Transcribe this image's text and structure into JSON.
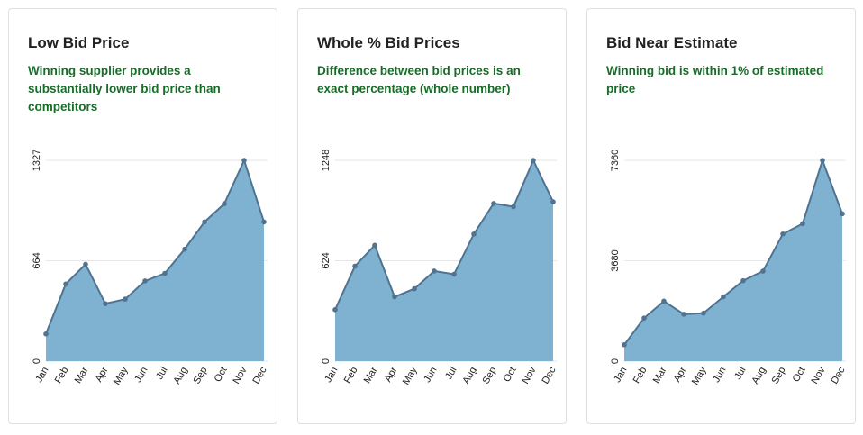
{
  "cards": [
    {
      "title": "Low Bid Price",
      "description": "Winning supplier provides a substantially lower bid price than competitors"
    },
    {
      "title": "Whole % Bid Prices",
      "description": "Difference between bid prices is an exact percentage (whole number)"
    },
    {
      "title": "Bid Near Estimate",
      "description": "Winning bid is within 1% of estimated price"
    }
  ],
  "colors": {
    "fill": "#7fb1d0",
    "line": "#4f7390",
    "point": "#4f7390",
    "description": "#1a6b2a"
  },
  "chart_data": [
    {
      "type": "area",
      "categories": [
        "Jan",
        "Feb",
        "Mar",
        "Apr",
        "May",
        "Jun",
        "Jul",
        "Aug",
        "Sep",
        "Oct",
        "Nov",
        "Dec"
      ],
      "series": [
        {
          "values": [
            180,
            510,
            640,
            380,
            410,
            530,
            580,
            740,
            920,
            1040,
            1327,
            920
          ]
        }
      ],
      "yticks": [
        "0",
        "664",
        "1327"
      ],
      "ylim": [
        0,
        1327
      ]
    },
    {
      "type": "area",
      "categories": [
        "Jan",
        "Feb",
        "Mar",
        "Apr",
        "May",
        "Jun",
        "Jul",
        "Aug",
        "Sep",
        "Oct",
        "Nov",
        "Dec"
      ],
      "series": [
        {
          "values": [
            320,
            590,
            720,
            400,
            450,
            560,
            540,
            790,
            980,
            960,
            1248,
            990
          ]
        }
      ],
      "yticks": [
        "0",
        "624",
        "1248"
      ],
      "ylim": [
        0,
        1248
      ]
    },
    {
      "type": "area",
      "categories": [
        "Jan",
        "Feb",
        "Mar",
        "Apr",
        "May",
        "Jun",
        "Jul",
        "Aug",
        "Sep",
        "Oct",
        "Nov",
        "Dec"
      ],
      "series": [
        {
          "values": [
            600,
            1580,
            2200,
            1720,
            1760,
            2360,
            2950,
            3300,
            4660,
            5040,
            7360,
            5400
          ]
        }
      ],
      "yticks": [
        "0",
        "3680",
        "7360"
      ],
      "ylim": [
        0,
        7360
      ]
    }
  ]
}
